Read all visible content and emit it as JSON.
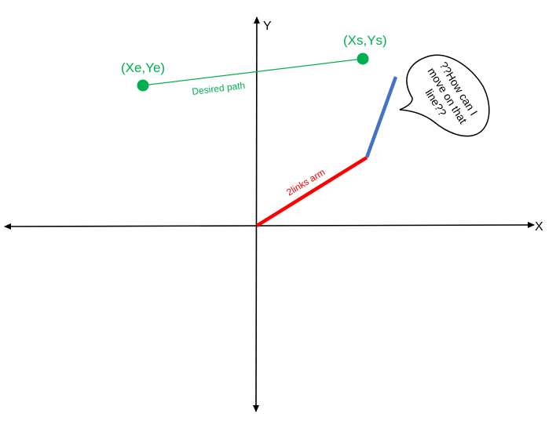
{
  "axes": {
    "x_label": "X",
    "y_label": "Y"
  },
  "points": {
    "end_label": "(Xe,Ye)",
    "start_label": "(Xs,Ys)"
  },
  "path": {
    "label": "Desired path"
  },
  "arm": {
    "label": "2links arm"
  },
  "bubble": {
    "line1": "??How can I",
    "line2": "move on that",
    "line3": "line??"
  },
  "colors": {
    "axis": "#000000",
    "path": "#00b050",
    "link1": "#ff0000",
    "link2": "#4472c4",
    "bubble_stroke": "#000000"
  }
}
